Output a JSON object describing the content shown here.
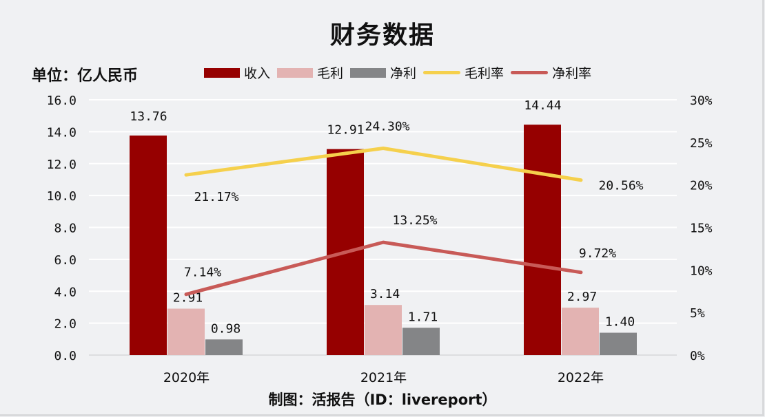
{
  "title": "财务数据",
  "unit_label": "单位：亿人民币",
  "credit": "制图：活报告（ID：livereport）",
  "legend": [
    {
      "label": "收入",
      "kind": "bar",
      "color": "#960000"
    },
    {
      "label": "毛利",
      "kind": "bar",
      "color": "#e3b3b2"
    },
    {
      "label": "净利",
      "kind": "bar",
      "color": "#848587"
    },
    {
      "label": "毛利率",
      "kind": "line",
      "color": "#f5d04c"
    },
    {
      "label": "净利率",
      "kind": "line",
      "color": "#c85a57"
    }
  ],
  "chart_data": {
    "type": "bar",
    "title": "财务数据",
    "xlabel": "",
    "ylabel": "单位：亿人民币",
    "y2label": "",
    "categories": [
      "2020年",
      "2021年",
      "2022年"
    ],
    "ylim": [
      0,
      16
    ],
    "y2lim": [
      0,
      30
    ],
    "yticks": [
      "0.0",
      "2.0",
      "4.0",
      "6.0",
      "8.0",
      "10.0",
      "12.0",
      "14.0",
      "16.0"
    ],
    "y2ticks": [
      "0%",
      "5%",
      "10%",
      "15%",
      "20%",
      "25%",
      "30%"
    ],
    "grid": true,
    "legend_position": "top",
    "series": [
      {
        "name": "收入",
        "type": "bar",
        "axis": "left",
        "color": "#960000",
        "values": [
          13.76,
          12.91,
          14.44
        ],
        "labels": [
          "13.76",
          "12.91",
          "14.44"
        ]
      },
      {
        "name": "毛利",
        "type": "bar",
        "axis": "left",
        "color": "#e3b3b2",
        "values": [
          2.91,
          3.14,
          2.97
        ],
        "labels": [
          "2.91",
          "3.14",
          "2.97"
        ]
      },
      {
        "name": "净利",
        "type": "bar",
        "axis": "left",
        "color": "#848587",
        "values": [
          0.98,
          1.71,
          1.4
        ],
        "labels": [
          "0.98",
          "1.71",
          "1.40"
        ]
      },
      {
        "name": "毛利率",
        "type": "line",
        "axis": "right",
        "color": "#f5d04c",
        "values": [
          21.17,
          24.3,
          20.56
        ],
        "labels": [
          "21.17%",
          "24.30%",
          "20.56%"
        ]
      },
      {
        "name": "净利率",
        "type": "line",
        "axis": "right",
        "color": "#c85a57",
        "values": [
          7.14,
          13.25,
          9.72
        ],
        "labels": [
          "7.14%",
          "13.25%",
          "9.72%"
        ]
      }
    ]
  }
}
